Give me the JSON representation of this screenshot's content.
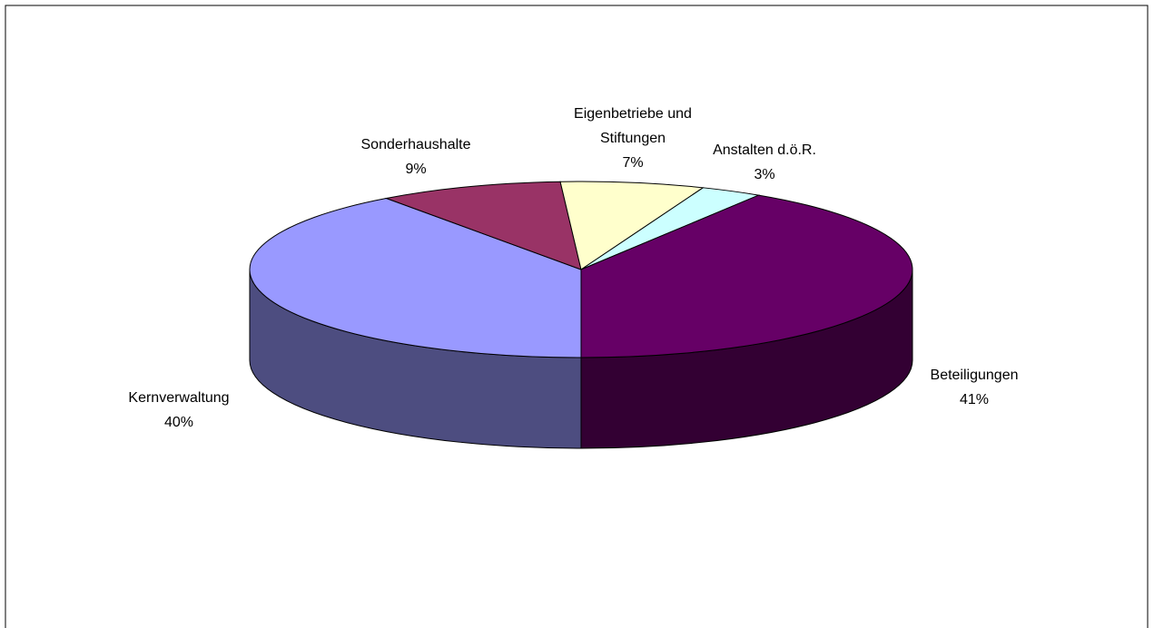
{
  "chart_data": {
    "type": "pie3d",
    "categories": [
      "Kernverwaltung",
      "Sonderhaushalte",
      "Eigenbetriebe und Stiftungen",
      "Anstalten d.ö.R.",
      "Beteiligungen"
    ],
    "values": [
      40,
      9,
      7,
      3,
      41
    ],
    "value_labels": [
      "40%",
      "9%",
      "7%",
      "3%",
      "41%"
    ],
    "colors": [
      "#9999FF",
      "#993366",
      "#FFFFCC",
      "#CCFFFF",
      "#660066"
    ]
  }
}
